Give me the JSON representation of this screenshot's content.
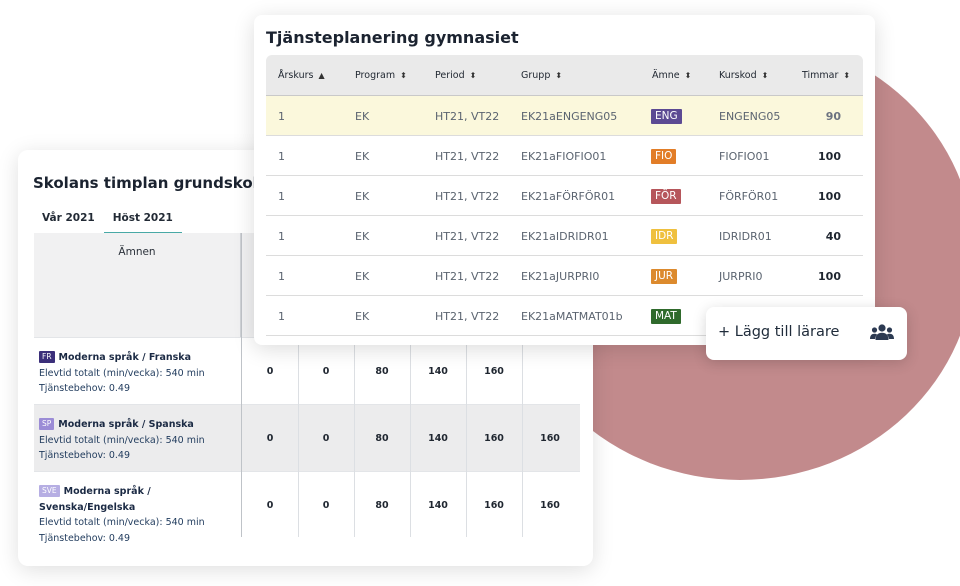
{
  "timplan": {
    "title": "Skolans timplan grundskola",
    "tabs": [
      "Vår 2021",
      "Höst 2021"
    ],
    "active_tab": 1,
    "amnen_header": "Ämnen",
    "rows": [
      {
        "code": "FR",
        "code_color": "#3b2f7a",
        "name": "Moderna språk / Franska",
        "elevtid": "Elevtid totalt (min/vecka): 540 min",
        "tjanstebehov": "Tjänstebehov: 0.49",
        "values": [
          "0",
          "0",
          "80",
          "140",
          "160",
          ""
        ]
      },
      {
        "code": "SP",
        "code_color": "#9b8cd6",
        "name": "Moderna språk / Spanska",
        "elevtid": "Elevtid totalt (min/vecka): 540 min",
        "tjanstebehov": "Tjänstebehov: 0.49",
        "values": [
          "0",
          "0",
          "80",
          "140",
          "160",
          "160"
        ]
      },
      {
        "code": "SVE",
        "code_color": "#b6aee3",
        "name": "Moderna språk / Svenska/Engelska",
        "elevtid": "Elevtid totalt (min/vecka): 540 min",
        "tjanstebehov": "Tjänstebehov: 0.49",
        "values": [
          "0",
          "0",
          "80",
          "140",
          "160",
          "160"
        ]
      }
    ]
  },
  "planering": {
    "title": "Tjänsteplanering gymnasiet",
    "columns": [
      {
        "label": "Årskurs",
        "sort": "▲"
      },
      {
        "label": "Program",
        "sort": "⬍"
      },
      {
        "label": "Period",
        "sort": "⬍"
      },
      {
        "label": "Grupp",
        "sort": "⬍"
      },
      {
        "label": "Ämne",
        "sort": "⬍"
      },
      {
        "label": "Kurskod",
        "sort": "⬍"
      },
      {
        "label": "Timmar",
        "sort": "⬍"
      }
    ],
    "rows": [
      {
        "arskurs": "1",
        "program": "EK",
        "period": "HT21, VT22",
        "grupp": "EK21aENGENG05",
        "amne": "ENG",
        "amne_color": "#5c4a93",
        "kurskod": "ENGENG05",
        "timmar": "90",
        "highlighted": true
      },
      {
        "arskurs": "1",
        "program": "EK",
        "period": "HT21, VT22",
        "grupp": "EK21aFIOFIO01",
        "amne": "FIO",
        "amne_color": "#e27d27",
        "kurskod": "FIOFIO01",
        "timmar": "100",
        "highlighted": false
      },
      {
        "arskurs": "1",
        "program": "EK",
        "period": "HT21, VT22",
        "grupp": "EK21aFÖRFÖR01",
        "amne": "FÖR",
        "amne_color": "#b6565b",
        "kurskod": "FÖRFÖR01",
        "timmar": "100",
        "highlighted": false
      },
      {
        "arskurs": "1",
        "program": "EK",
        "period": "HT21, VT22",
        "grupp": "EK21aIDRIDR01",
        "amne": "IDR",
        "amne_color": "#efc03e",
        "kurskod": "IDRIDR01",
        "timmar": "40",
        "highlighted": false
      },
      {
        "arskurs": "1",
        "program": "EK",
        "period": "HT21, VT22",
        "grupp": "EK21aJURPRI0",
        "amne": "JUR",
        "amne_color": "#dc8a2d",
        "kurskod": "JURPRI0",
        "timmar": "100",
        "highlighted": false
      },
      {
        "arskurs": "1",
        "program": "EK",
        "period": "HT21, VT22",
        "grupp": "EK21aMATMAT01b",
        "amne": "MAT",
        "amne_color": "#2f6a2c",
        "kurskod": "",
        "timmar": "",
        "highlighted": false
      }
    ]
  },
  "add_teacher": {
    "label": "+ Lägg till lärare",
    "icon": "users-icon"
  }
}
